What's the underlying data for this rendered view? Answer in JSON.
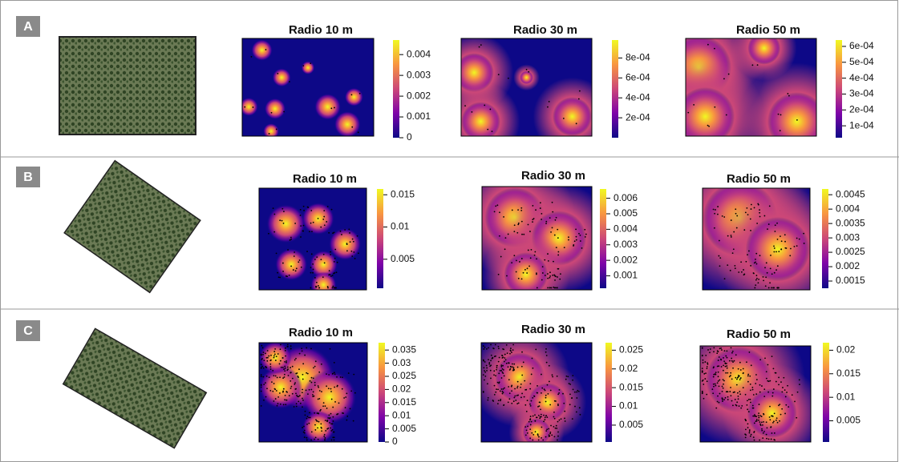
{
  "rows": [
    {
      "label": "A",
      "panels": [
        {
          "title": "Radio 10 m",
          "colorbar": {
            "lim": [
              0,
              0.0047
            ],
            "ticks": [
              0,
              0.001,
              0.002,
              0.003,
              0.004
            ]
          }
        },
        {
          "title": "Radio 30 m",
          "colorbar": {
            "lim": [
              0,
              0.00098
            ],
            "ticks": [
              {
                "value": 0.0002,
                "label": "2e-04"
              },
              {
                "value": 0.0004,
                "label": "4e-04"
              },
              {
                "value": 0.0006,
                "label": "6e-04"
              },
              {
                "value": 0.0008,
                "label": "8e-04"
              }
            ]
          }
        },
        {
          "title": "Radio 50 m",
          "colorbar": {
            "lim": [
              2.5e-05,
              0.00064
            ],
            "ticks": [
              {
                "value": 0.0001,
                "label": "1e-04"
              },
              {
                "value": 0.0002,
                "label": "2e-04"
              },
              {
                "value": 0.0003,
                "label": "3e-04"
              },
              {
                "value": 0.0004,
                "label": "4e-04"
              },
              {
                "value": 0.0005,
                "label": "5e-04"
              },
              {
                "value": 0.0006,
                "label": "6e-04"
              }
            ]
          }
        }
      ]
    },
    {
      "label": "B",
      "panels": [
        {
          "title": "Radio 10 m",
          "colorbar": {
            "lim": [
              0.0005,
              0.0159
            ],
            "ticks": [
              0.005,
              0.01,
              0.015
            ]
          }
        },
        {
          "title": "Radio 30 m",
          "colorbar": {
            "lim": [
              0.0002,
              0.0066
            ],
            "ticks": [
              0.001,
              0.002,
              0.003,
              0.004,
              0.005,
              0.006
            ]
          }
        },
        {
          "title": "Radio 50 m",
          "colorbar": {
            "lim": [
              0.00125,
              0.0047
            ],
            "ticks": [
              0.0015,
              0.002,
              0.0025,
              0.003,
              0.0035,
              0.004,
              0.0045
            ]
          }
        }
      ]
    },
    {
      "label": "C",
      "panels": [
        {
          "title": "Radio 10 m",
          "colorbar": {
            "lim": [
              0,
              0.0378
            ],
            "ticks": [
              0,
              0.005,
              0.01,
              0.015,
              0.02,
              0.025,
              0.03,
              0.035
            ]
          }
        },
        {
          "title": "Radio 30 m",
          "colorbar": {
            "lim": [
              0.0005,
              0.027
            ],
            "ticks": [
              0.005,
              0.01,
              0.015,
              0.02,
              0.025
            ]
          }
        },
        {
          "title": "Radio 50 m",
          "colorbar": {
            "lim": [
              0.0005,
              0.0216
            ],
            "ticks": [
              0.005,
              0.01,
              0.015,
              0.02
            ]
          }
        }
      ]
    }
  ]
}
